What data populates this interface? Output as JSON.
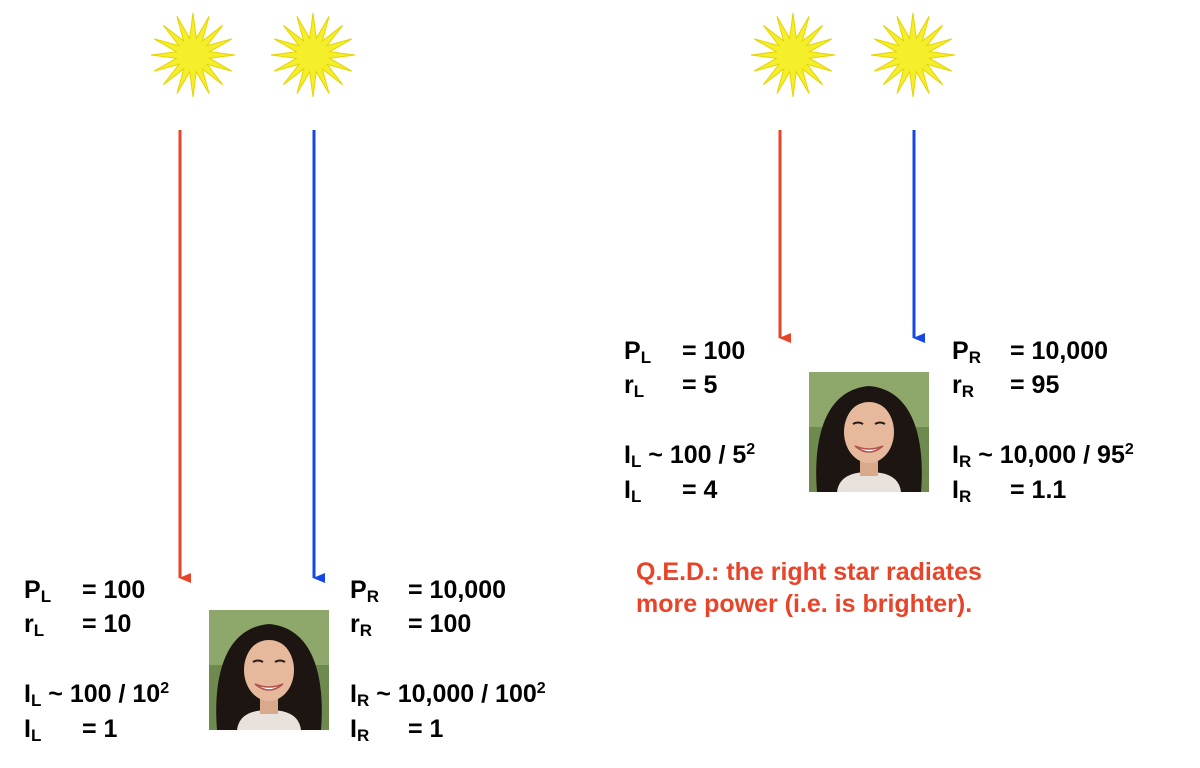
{
  "colors": {
    "star": "#f5ee2a",
    "star_outline": "#e6d400",
    "left_arrow": "#e8442a",
    "right_arrow": "#1447e6",
    "text": "#000000",
    "conclusion": "#e8442a"
  },
  "icons": {
    "star": "star-burst-icon",
    "observer": "observer-face-photo"
  },
  "scenes": [
    {
      "id": "equal-distance",
      "left": {
        "power_label": "P",
        "power_sub": "L",
        "power_value": "= 100",
        "distance_label": "r",
        "distance_sub": "L",
        "distance_value": "= 10",
        "intensity_label": "I",
        "intensity_sub": "L",
        "intensity_formula": "~ 100 / 10",
        "intensity_exp": "2",
        "result_label": "I",
        "result_sub": "L",
        "result_value": "= 1"
      },
      "right": {
        "power_label": "P",
        "power_sub": "R",
        "power_value": "= 10,000",
        "distance_label": "r",
        "distance_sub": "R",
        "distance_value": "= 100",
        "intensity_label": "I",
        "intensity_sub": "R",
        "intensity_formula": "~ 10,000 / 100",
        "intensity_exp": "2",
        "result_label": "I",
        "result_sub": "R",
        "result_value": "= 1"
      }
    },
    {
      "id": "different-distance",
      "left": {
        "power_label": "P",
        "power_sub": "L",
        "power_value": "= 100",
        "distance_label": "r",
        "distance_sub": "L",
        "distance_value": "= 5",
        "intensity_label": "I",
        "intensity_sub": "L",
        "intensity_formula": "~ 100 / 5",
        "intensity_exp": "2",
        "result_label": "I",
        "result_sub": "L",
        "result_value": "= 4"
      },
      "right": {
        "power_label": "P",
        "power_sub": "R",
        "power_value": "= 10,000",
        "distance_label": "r",
        "distance_sub": "R",
        "distance_value": "= 95",
        "intensity_label": "I",
        "intensity_sub": "R",
        "intensity_formula": "~ 10,000 / 95",
        "intensity_exp": "2",
        "result_label": "I",
        "result_sub": "R",
        "result_value": "= 1.1"
      }
    }
  ],
  "conclusion": {
    "line1": "Q.E.D.: the right star radiates",
    "line2": "more power (i.e. is brighter)."
  }
}
